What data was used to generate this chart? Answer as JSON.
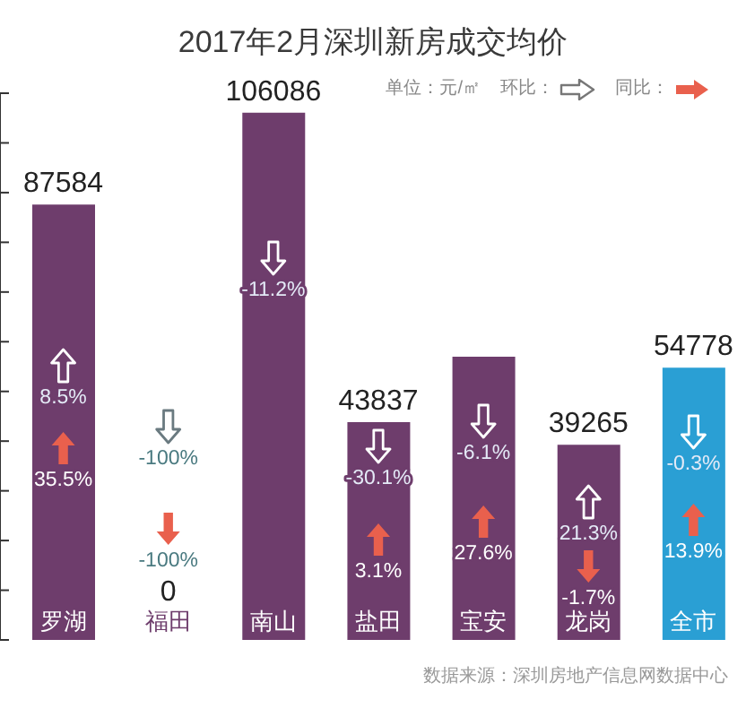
{
  "chart_data": {
    "type": "bar",
    "title": "2017年2月深圳新房成交均价",
    "categories": [
      "罗湖",
      "福田",
      "南山",
      "盐田",
      "宝安",
      "龙岗",
      "全市"
    ],
    "values": [
      87584,
      0,
      106086,
      43837,
      57000,
      39265,
      54778
    ],
    "colors": [
      "#6e3d6c",
      "#6e3d6c",
      "#6e3d6c",
      "#6e3d6c",
      "#6e3d6c",
      "#6e3d6c",
      "#2a9fd4"
    ],
    "value_labels": [
      "87584",
      "0",
      "106086",
      "43837",
      null,
      "39265",
      "54778"
    ],
    "ylim": [
      0,
      110000
    ],
    "yticks": [
      {
        "value": 0,
        "label": null
      },
      {
        "value": 10000,
        "label": null
      },
      {
        "value": 20000,
        "label": null
      },
      {
        "value": 30000,
        "label": null
      },
      {
        "value": 40000,
        "label": null
      },
      {
        "value": 50000,
        "label": null
      },
      {
        "value": 60000,
        "label": null
      },
      {
        "value": 70000,
        "label": null
      },
      {
        "value": 80000,
        "label": null
      },
      {
        "value": 90000,
        "label": null
      },
      {
        "value": 100000,
        "label": null
      },
      {
        "value": 110000,
        "label": null
      }
    ],
    "tick_labels": "x",
    "annotations": [
      "8.5%",
      "35.5%",
      "-100%",
      "-100%",
      "-11.2%",
      "-30.1%",
      "3.1%",
      "-6.1%",
      "27.6%",
      "21.3%",
      "-1.7%",
      "-0.3%",
      "13.9%",
      "单位：元/㎡",
      "环比：",
      "同比：",
      "数据来源：深圳房地产信息网数据中心"
    ]
  }
}
